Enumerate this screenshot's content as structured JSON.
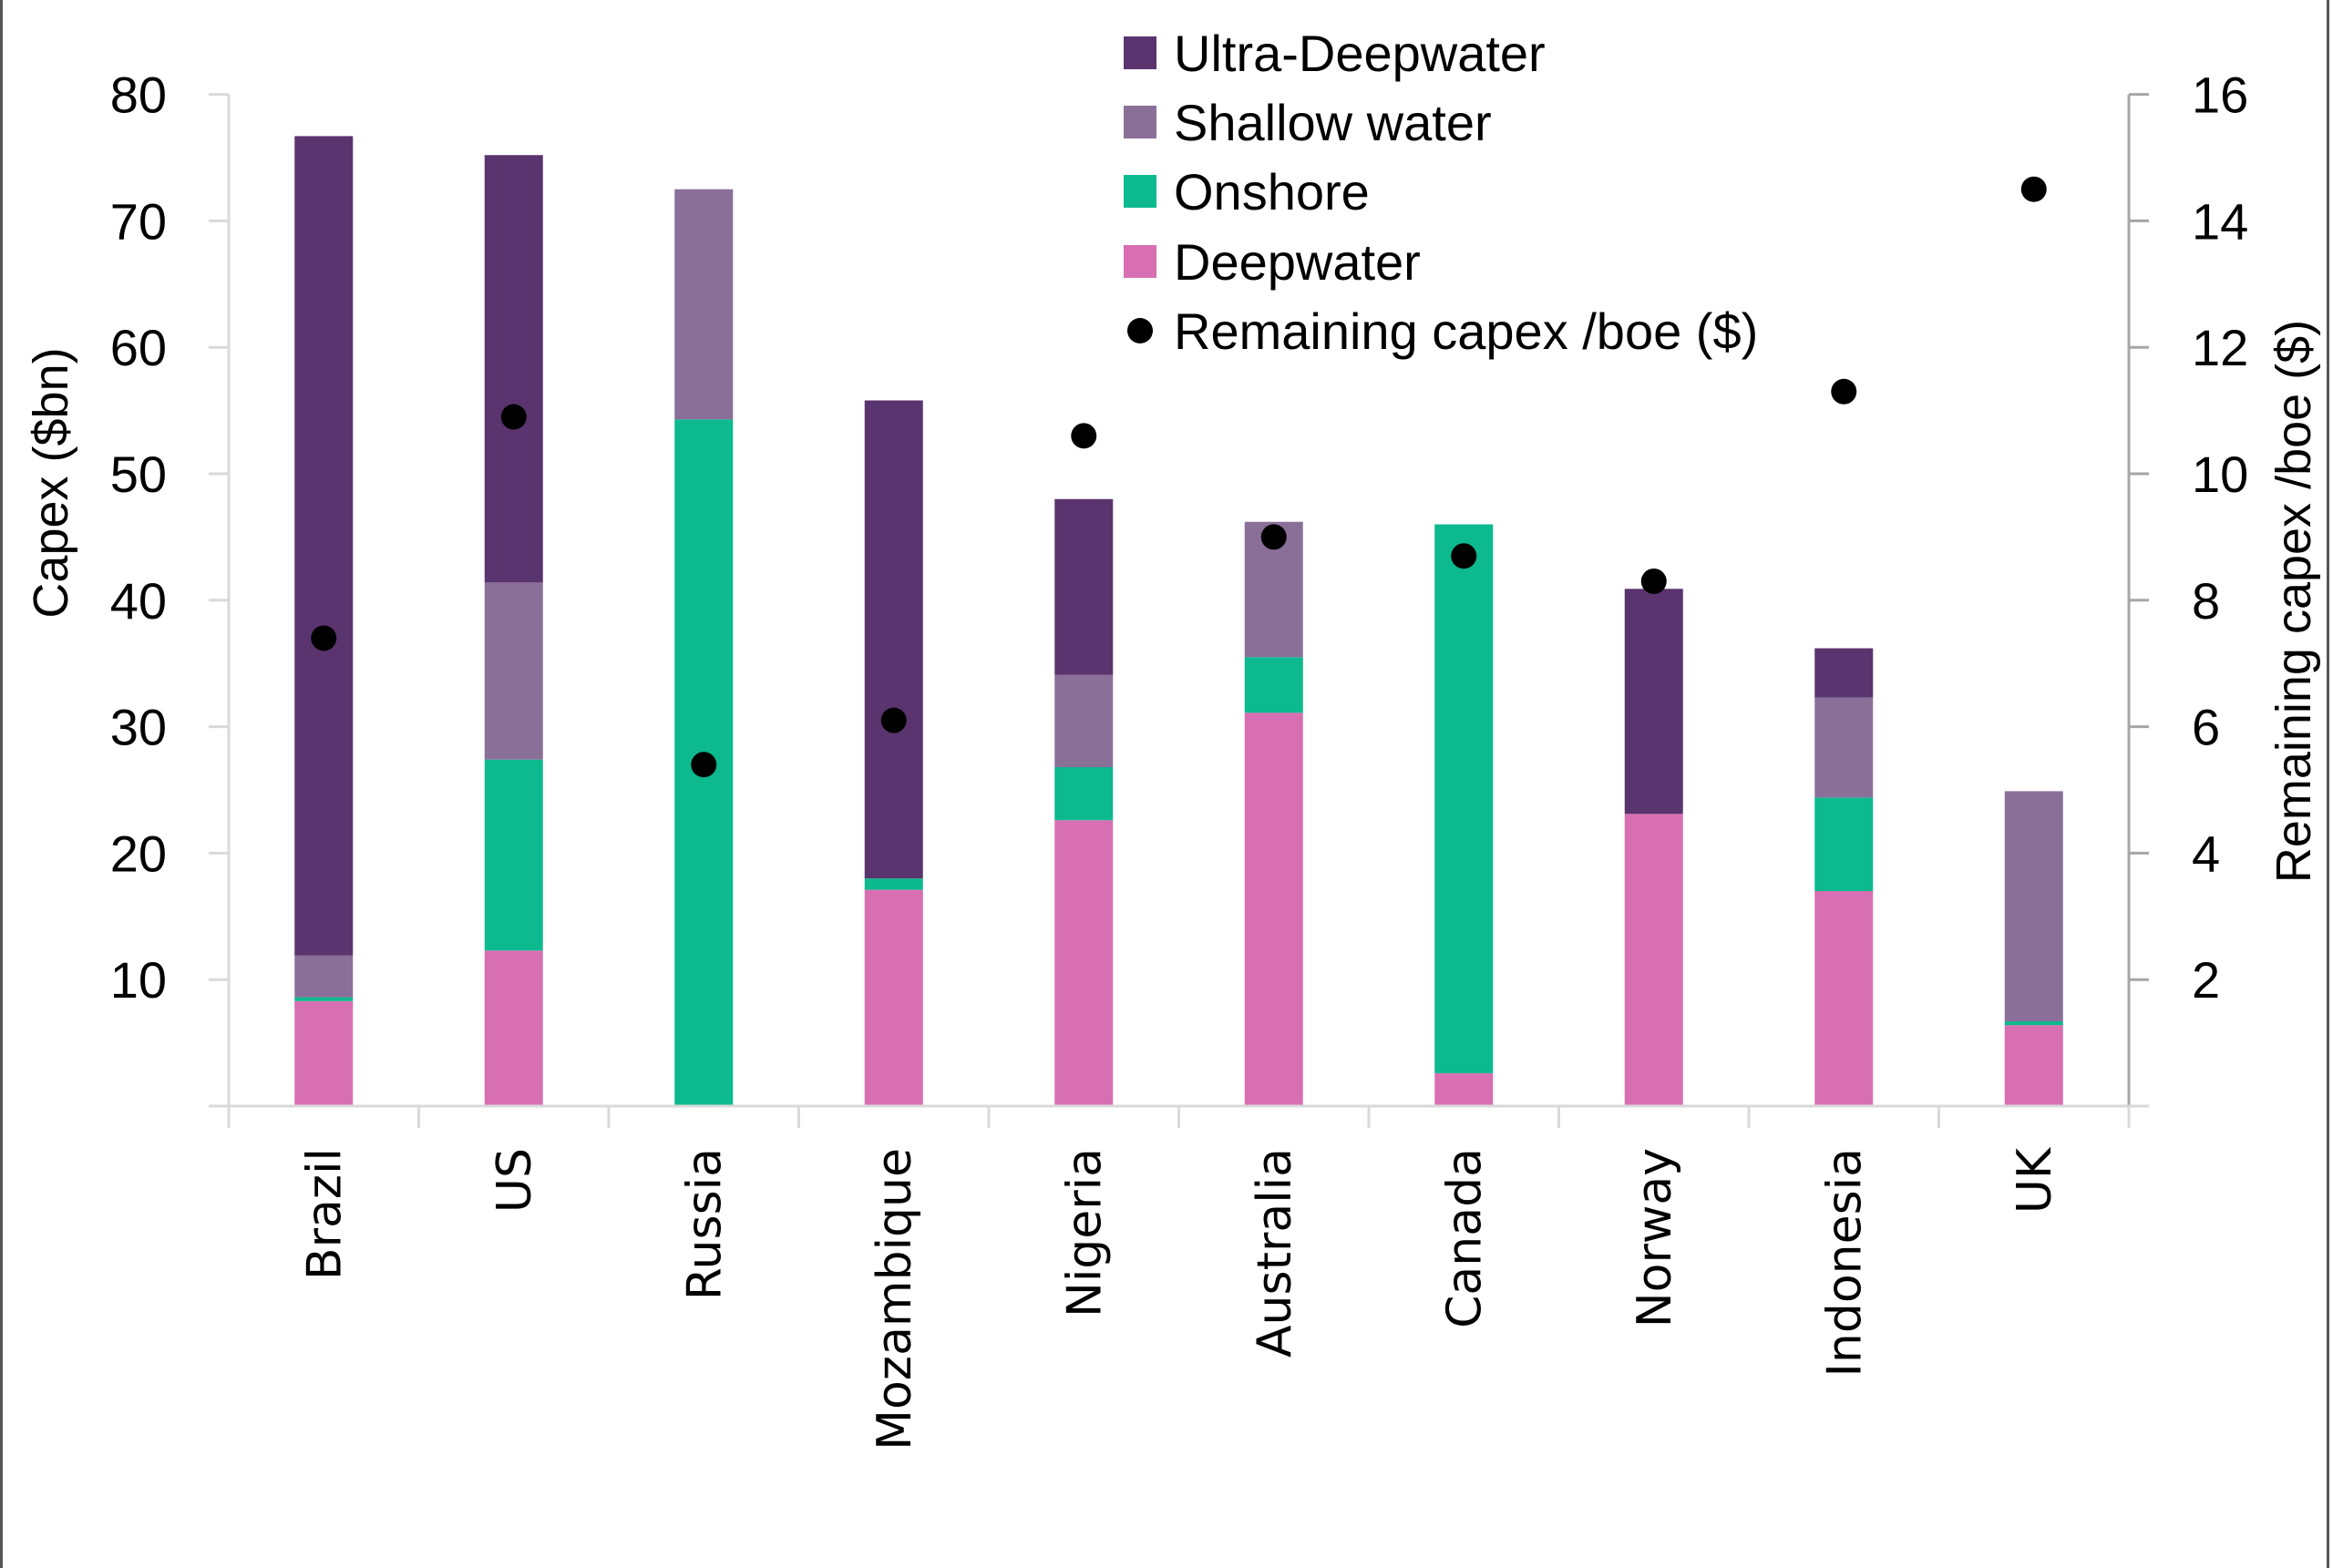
{
  "chart_data": {
    "type": "bar",
    "stacked": true,
    "title": "",
    "xlabel": "",
    "ylabel": "Capex ($bn)",
    "y2label": "Remaining capex /boe ($)",
    "ylim": [
      0,
      80
    ],
    "y2lim": [
      0,
      16
    ],
    "yticks": [
      10,
      20,
      30,
      40,
      50,
      60,
      70,
      80
    ],
    "y2ticks": [
      2,
      4,
      6,
      8,
      10,
      12,
      14,
      16
    ],
    "grid": false,
    "legend_position": "top-center",
    "categories": [
      "Brazil",
      "US",
      "Russia",
      "Mozambique",
      "Nigeria",
      "Australia",
      "Canada",
      "Norway",
      "Indonesia",
      "UK"
    ],
    "series": [
      {
        "name": "Deepwater",
        "color": "#D86FB2",
        "axis": "left",
        "kind": "bar",
        "values": [
          8.3,
          12.3,
          0,
          17.1,
          22.6,
          31.1,
          2.6,
          23.1,
          17.0,
          6.4
        ]
      },
      {
        "name": "Onshore",
        "color": "#0DB98E",
        "axis": "left",
        "kind": "bar",
        "values": [
          0.3,
          15.1,
          54.3,
          0.9,
          4.2,
          4.4,
          43.4,
          0,
          7.4,
          0.3
        ]
      },
      {
        "name": "Shallow water",
        "color": "#8A7099",
        "axis": "left",
        "kind": "bar",
        "values": [
          3.3,
          14.0,
          18.2,
          0,
          7.3,
          10.7,
          0,
          0,
          7.9,
          18.2
        ]
      },
      {
        "name": "Ultra-Deepwater",
        "color": "#5A346E",
        "axis": "left",
        "kind": "bar",
        "values": [
          64.8,
          33.8,
          0,
          37.8,
          13.9,
          0,
          0,
          17.8,
          3.9,
          0
        ]
      },
      {
        "name": "Remaining capex /boe ($)",
        "color": "#000000",
        "axis": "right",
        "kind": "scatter",
        "values": [
          7.4,
          10.9,
          5.4,
          6.1,
          10.6,
          9.0,
          8.7,
          8.3,
          11.3,
          14.5
        ]
      }
    ],
    "legend": [
      {
        "label": "Ultra-Deepwater",
        "marker": "square",
        "color": "#5A346E"
      },
      {
        "label": "Shallow water",
        "marker": "square",
        "color": "#8A7099"
      },
      {
        "label": "Onshore",
        "marker": "square",
        "color": "#0DB98E"
      },
      {
        "label": "Deepwater",
        "marker": "square",
        "color": "#D86FB2"
      },
      {
        "label": "Remaining capex /boe ($)",
        "marker": "circle",
        "color": "#000000"
      }
    ]
  }
}
